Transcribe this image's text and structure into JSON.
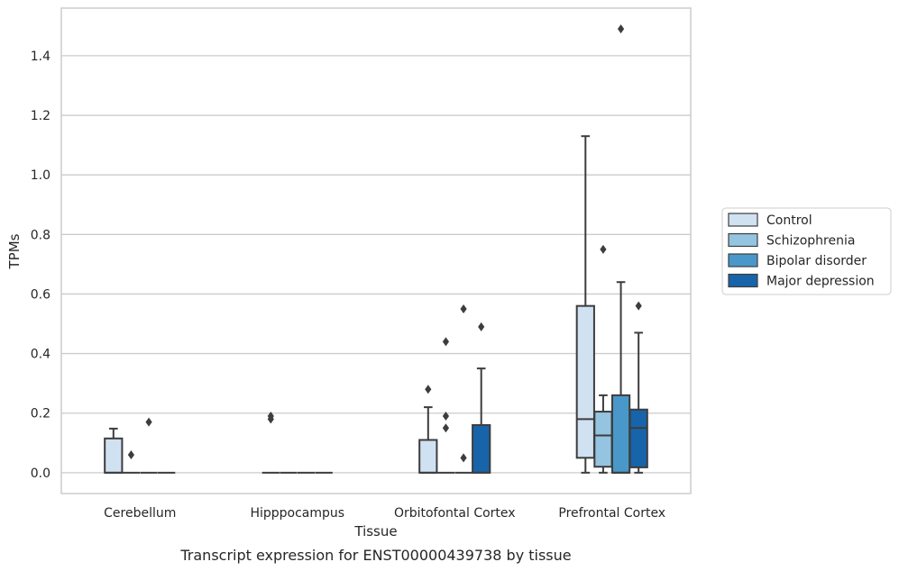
{
  "chart_data": {
    "type": "box",
    "xlabel": "Tissue",
    "ylabel": "TPMs",
    "caption": "Transcript expression for ENST00000439738 by tissue",
    "categories": [
      "Cerebellum",
      "Hipppocampus",
      "Orbitofontal Cortex",
      "Prefrontal Cortex"
    ],
    "ylim": [
      -0.07,
      1.56
    ],
    "yticks": [
      "0.0",
      "0.2",
      "0.4",
      "0.6",
      "0.8",
      "1.0",
      "1.2",
      "1.4"
    ],
    "grid": "horizontal",
    "legend_position": "right",
    "series": [
      {
        "name": "Control",
        "color": "#d0e1f2",
        "boxes": [
          {
            "q1": 0.0,
            "median": 0.0,
            "q3": 0.115,
            "whisker_low": 0.0,
            "whisker_high": 0.148,
            "outliers": []
          },
          {
            "q1": 0.0,
            "median": 0.0,
            "q3": 0.0,
            "whisker_low": 0.0,
            "whisker_high": 0.0,
            "outliers": [
              0.18,
              0.19
            ]
          },
          {
            "q1": 0.0,
            "median": 0.0,
            "q3": 0.11,
            "whisker_low": 0.0,
            "whisker_high": 0.22,
            "outliers": [
              0.28
            ]
          },
          {
            "q1": 0.05,
            "median": 0.18,
            "q3": 0.56,
            "whisker_low": 0.0,
            "whisker_high": 1.13,
            "outliers": []
          }
        ]
      },
      {
        "name": "Schizophrenia",
        "color": "#94c4df",
        "boxes": [
          {
            "q1": 0.0,
            "median": 0.0,
            "q3": 0.0,
            "whisker_low": 0.0,
            "whisker_high": 0.0,
            "outliers": [
              0.06
            ]
          },
          {
            "q1": 0.0,
            "median": 0.0,
            "q3": 0.0,
            "whisker_low": 0.0,
            "whisker_high": 0.0,
            "outliers": []
          },
          {
            "q1": 0.0,
            "median": 0.0,
            "q3": 0.0,
            "whisker_low": 0.0,
            "whisker_high": 0.0,
            "outliers": [
              0.15,
              0.19,
              0.44
            ]
          },
          {
            "q1": 0.02,
            "median": 0.125,
            "q3": 0.205,
            "whisker_low": 0.0,
            "whisker_high": 0.26,
            "outliers": [
              0.75
            ]
          }
        ]
      },
      {
        "name": "Bipolar disorder",
        "color": "#4a98c9",
        "boxes": [
          {
            "q1": 0.0,
            "median": 0.0,
            "q3": 0.0,
            "whisker_low": 0.0,
            "whisker_high": 0.0,
            "outliers": [
              0.17
            ]
          },
          {
            "q1": 0.0,
            "median": 0.0,
            "q3": 0.0,
            "whisker_low": 0.0,
            "whisker_high": 0.0,
            "outliers": []
          },
          {
            "q1": 0.0,
            "median": 0.0,
            "q3": 0.0,
            "whisker_low": 0.0,
            "whisker_high": 0.0,
            "outliers": [
              0.05,
              0.55
            ]
          },
          {
            "q1": 0.0,
            "median": 0.0,
            "q3": 0.26,
            "whisker_low": 0.0,
            "whisker_high": 0.64,
            "outliers": [
              1.49
            ]
          }
        ]
      },
      {
        "name": "Major depression",
        "color": "#1764ab",
        "boxes": [
          {
            "q1": 0.0,
            "median": 0.0,
            "q3": 0.0,
            "whisker_low": 0.0,
            "whisker_high": 0.0,
            "outliers": []
          },
          {
            "q1": 0.0,
            "median": 0.0,
            "q3": 0.0,
            "whisker_low": 0.0,
            "whisker_high": 0.0,
            "outliers": []
          },
          {
            "q1": 0.0,
            "median": 0.0,
            "q3": 0.16,
            "whisker_low": 0.0,
            "whisker_high": 0.35,
            "outliers": [
              0.49
            ]
          },
          {
            "q1": 0.018,
            "median": 0.15,
            "q3": 0.212,
            "whisker_low": 0.0,
            "whisker_high": 0.47,
            "outliers": [
              0.56
            ]
          }
        ]
      }
    ]
  }
}
